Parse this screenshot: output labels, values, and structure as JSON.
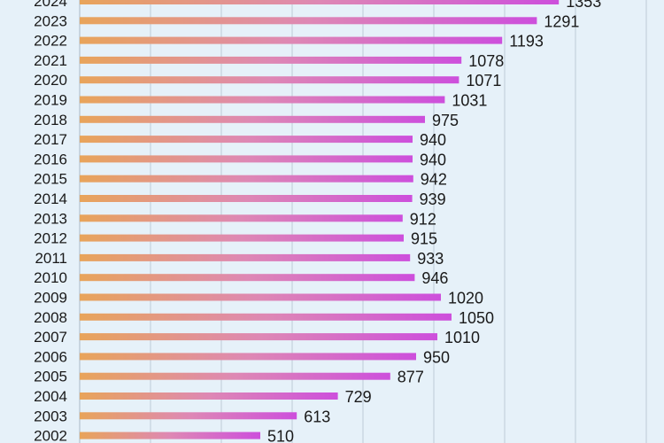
{
  "chart_data": {
    "type": "bar",
    "orientation": "horizontal",
    "categories": [
      "2024",
      "2023",
      "2022",
      "2021",
      "2020",
      "2019",
      "2018",
      "2017",
      "2016",
      "2015",
      "2014",
      "2013",
      "2012",
      "2011",
      "2010",
      "2009",
      "2008",
      "2007",
      "2006",
      "2005",
      "2004",
      "2003",
      "2002"
    ],
    "values": [
      1353,
      1291,
      1193,
      1078,
      1071,
      1031,
      975,
      940,
      940,
      942,
      939,
      912,
      915,
      933,
      946,
      1020,
      1050,
      1010,
      950,
      877,
      729,
      613,
      510
    ],
    "value_labels": [
      "1353",
      "1291",
      "1193",
      "1078",
      "1071",
      "1031",
      "975",
      "940",
      "940",
      "942",
      "939",
      "912",
      "915",
      "933",
      "946",
      "1020",
      "1050",
      "1010",
      "950",
      "877",
      "729",
      "613",
      "510"
    ],
    "title": "",
    "xlabel": "",
    "ylabel": "",
    "xlim": [
      0,
      1650
    ],
    "grid": true,
    "legend": "none",
    "colors": {
      "background": "#e6f1f9",
      "bar_start": "#e8a45a",
      "bar_mid": "#de88b4",
      "bar_end": "#cd4fdc",
      "gridline": "#b9c6d2",
      "text": "#1a1a1a"
    }
  }
}
